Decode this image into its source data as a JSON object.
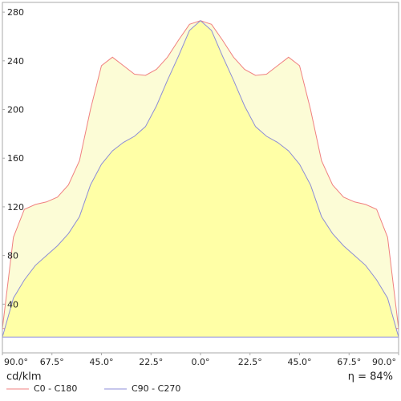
{
  "chart_data": {
    "type": "line",
    "x": [
      -90,
      -85,
      -80,
      -75,
      -70,
      -65,
      -60,
      -55,
      -50,
      -45,
      -40,
      -35,
      -30,
      -25,
      -20,
      -15,
      -10,
      -5,
      0,
      5,
      10,
      15,
      20,
      25,
      30,
      35,
      40,
      45,
      50,
      55,
      60,
      65,
      70,
      75,
      80,
      85,
      90
    ],
    "series": [
      {
        "name": "C0 - C180",
        "color": "#f08080",
        "fill": "#fcfcd6",
        "values": [
          20,
          95,
          118,
          122,
          124,
          128,
          138,
          158,
          200,
          236,
          243,
          236,
          229,
          228,
          233,
          243,
          257,
          270,
          273,
          270,
          257,
          243,
          233,
          228,
          229,
          236,
          243,
          236,
          200,
          158,
          138,
          128,
          124,
          122,
          118,
          95,
          20
        ]
      },
      {
        "name": "C90 - C270",
        "color": "#8c8cd8",
        "fill": "#ffffa6",
        "values": [
          13,
          45,
          60,
          72,
          80,
          88,
          98,
          112,
          138,
          155,
          166,
          173,
          178,
          186,
          203,
          224,
          244,
          265,
          273,
          265,
          244,
          224,
          203,
          186,
          178,
          173,
          166,
          155,
          138,
          112,
          98,
          88,
          80,
          72,
          60,
          45,
          13
        ]
      }
    ],
    "xlim": [
      -90,
      90
    ],
    "xticks": [
      {
        "value": -90,
        "label": "90.0°"
      },
      {
        "value": -67.5,
        "label": "67.5°"
      },
      {
        "value": -45,
        "label": "45.0°"
      },
      {
        "value": -22.5,
        "label": "22.5°"
      },
      {
        "value": 0,
        "label": "0.0°"
      },
      {
        "value": 22.5,
        "label": "22.5°"
      },
      {
        "value": 45,
        "label": "45.0°"
      },
      {
        "value": 67.5,
        "label": "67.5°"
      },
      {
        "value": 90,
        "label": "90.0°"
      }
    ],
    "ylim": [
      0,
      288
    ],
    "yticks": [
      40,
      80,
      120,
      160,
      200,
      240,
      280
    ],
    "unit": "cd/klm",
    "efficiency": "η = 84%"
  }
}
